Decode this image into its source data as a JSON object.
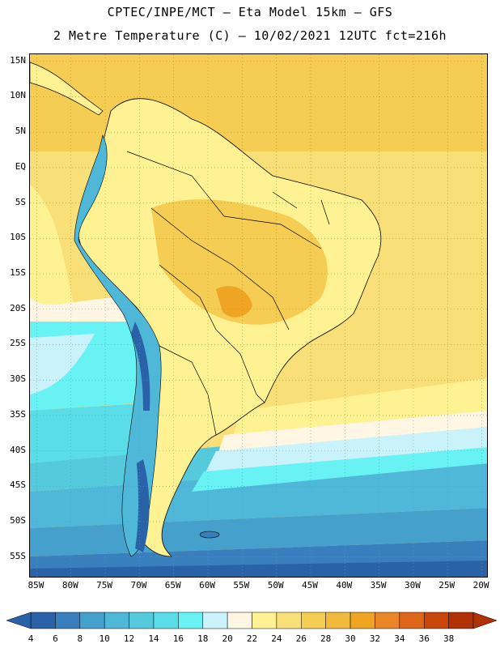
{
  "header": {
    "line1": "CPTEC/INPE/MCT –  Eta Model 15km – GFS",
    "line2": "2 Metre Temperature (C) – 10/02/2021 12UTC fct=216h"
  },
  "map": {
    "lat_labels": [
      "15N",
      "10N",
      "5N",
      "EQ",
      "5S",
      "10S",
      "15S",
      "20S",
      "25S",
      "30S",
      "35S",
      "40S",
      "45S",
      "50S",
      "55S"
    ],
    "lon_labels": [
      "85W",
      "80W",
      "75W",
      "70W",
      "65W",
      "60W",
      "55W",
      "50W",
      "45W",
      "40W",
      "35W",
      "30W",
      "25W",
      "20W"
    ],
    "extent": {
      "lon_min": -86,
      "lon_max": -19,
      "lat_min": -58,
      "lat_max": 16
    }
  },
  "colorbar": {
    "labels": [
      "4",
      "6",
      "8",
      "10",
      "12",
      "14",
      "16",
      "18",
      "20",
      "22",
      "24",
      "26",
      "28",
      "30",
      "32",
      "34",
      "36",
      "38"
    ],
    "colors": [
      "#2a62a8",
      "#3a7fbd",
      "#45a0cb",
      "#4fb7d8",
      "#55cadc",
      "#5bdde8",
      "#69f2f4",
      "#c9f2fb",
      "#fff6e3",
      "#fff293",
      "#f9df78",
      "#f5cd53",
      "#f0bb3c",
      "#efa424",
      "#e88628",
      "#de6618",
      "#c8460a",
      "#b03205"
    ]
  }
}
